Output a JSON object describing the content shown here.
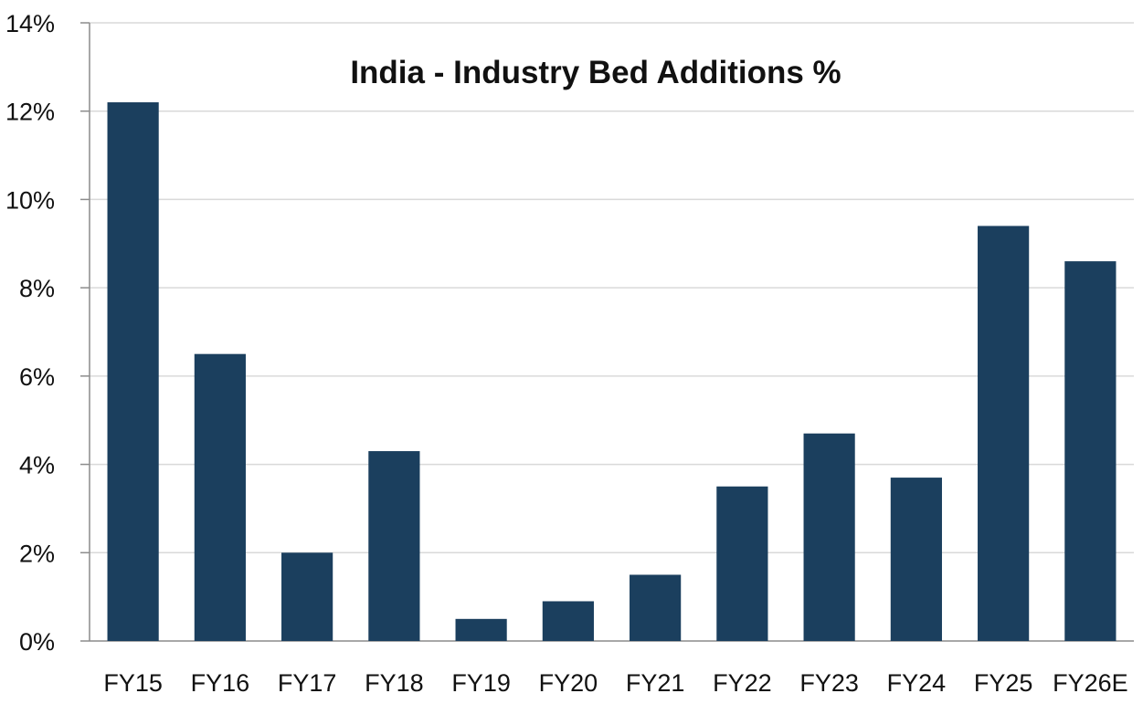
{
  "chart_data": {
    "type": "bar",
    "title": "India - Industry Bed Additions %",
    "xlabel": "",
    "ylabel": "",
    "categories": [
      "FY15",
      "FY16",
      "FY17",
      "FY18",
      "FY19",
      "FY20",
      "FY21",
      "FY22",
      "FY23",
      "FY24",
      "FY25",
      "FY26E"
    ],
    "series": [
      {
        "values": [
          12.2,
          6.5,
          2.0,
          4.3,
          0.5,
          0.9,
          1.5,
          3.5,
          4.7,
          3.7,
          9.4,
          8.6
        ]
      }
    ],
    "ylim": [
      0,
      14
    ],
    "yticks": [
      0,
      2,
      4,
      6,
      8,
      10,
      12,
      14
    ],
    "ytick_labels": [
      "0%",
      "2%",
      "4%",
      "6%",
      "8%",
      "10%",
      "12%",
      "14%"
    ],
    "grid": true,
    "legend": "none",
    "colors": {
      "bar": "#1b3f5e",
      "grid": "#d9d9d9",
      "axis": "#8c8c8c"
    }
  }
}
